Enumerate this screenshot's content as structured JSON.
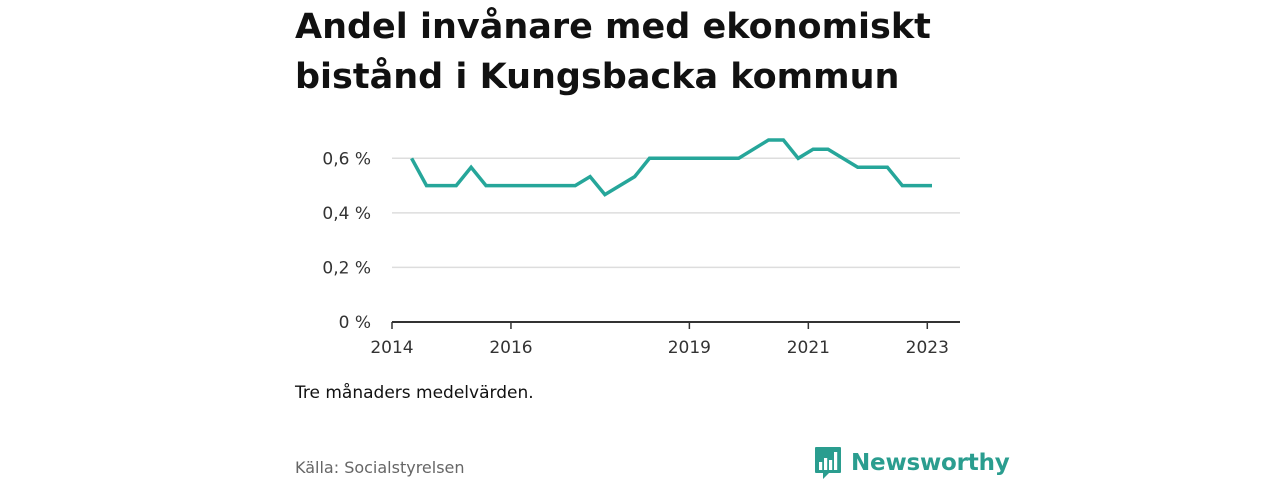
{
  "title": "Andel invånare med ekonomiskt bistånd i Kungsbacka kommun",
  "note": "Tre månaders medelvärden.",
  "source": "Källa: Socialstyrelsen",
  "brand": {
    "name": "Newsworthy",
    "icon": "bar-chart-speech-bubble-icon",
    "color": "#2a9d8f"
  },
  "chart_data": {
    "type": "line",
    "title": "Andel invånare med ekonomiskt bistånd i Kungsbacka kommun",
    "xlabel": "",
    "ylabel": "",
    "xlim": [
      2014.0,
      2023.55
    ],
    "ylim": [
      0,
      0.7
    ],
    "y_ticks": [
      {
        "value": 0,
        "label": "0 %"
      },
      {
        "value": 0.2,
        "label": "0,2 %"
      },
      {
        "value": 0.4,
        "label": "0,4 %"
      },
      {
        "value": 0.6,
        "label": "0,6 %"
      }
    ],
    "x_ticks": [
      {
        "value": 2014,
        "label": "2014"
      },
      {
        "value": 2016,
        "label": "2016"
      },
      {
        "value": 2019,
        "label": "2019"
      },
      {
        "value": 2021,
        "label": "2021"
      },
      {
        "value": 2023,
        "label": "2023"
      }
    ],
    "grid": true,
    "legend": "none",
    "series": [
      {
        "color": "#26a69a",
        "points": [
          [
            2014.33,
            0.6
          ],
          [
            2014.58,
            0.5
          ],
          [
            2015.08,
            0.5
          ],
          [
            2015.33,
            0.567
          ],
          [
            2015.58,
            0.5
          ],
          [
            2017.08,
            0.5
          ],
          [
            2017.33,
            0.533
          ],
          [
            2017.58,
            0.467
          ],
          [
            2018.08,
            0.533
          ],
          [
            2018.33,
            0.6
          ],
          [
            2019.83,
            0.6
          ],
          [
            2020.33,
            0.667
          ],
          [
            2020.58,
            0.667
          ],
          [
            2020.83,
            0.6
          ],
          [
            2021.08,
            0.633
          ],
          [
            2021.33,
            0.633
          ],
          [
            2021.83,
            0.567
          ],
          [
            2022.33,
            0.567
          ],
          [
            2022.58,
            0.5
          ],
          [
            2023.08,
            0.5
          ]
        ]
      }
    ]
  }
}
